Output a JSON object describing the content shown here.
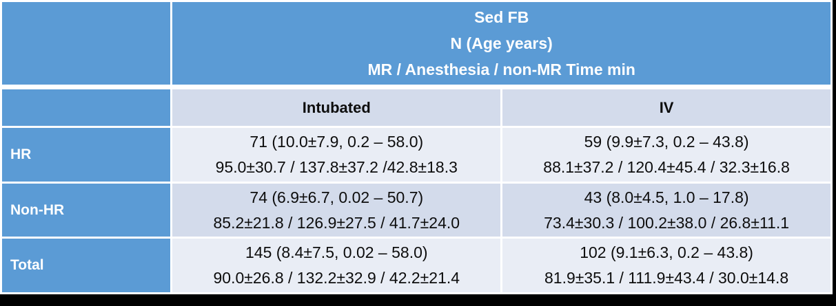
{
  "table": {
    "header": {
      "lines": [
        "Sed FB",
        "N (Age years)",
        "MR / Anesthesia / non-MR Time min"
      ]
    },
    "column_headers": [
      "Intubated",
      "IV"
    ],
    "rows": [
      {
        "label": "HR",
        "intubated": [
          "71 (10.0±7.9, 0.2 – 58.0)",
          "95.0±30.7 / 137.8±37.2 /42.8±18.3"
        ],
        "iv": [
          "59 (9.9±7.3, 0.2 – 43.8)",
          "88.1±37.2 / 120.4±45.4 / 32.3±16.8"
        ]
      },
      {
        "label": "Non-HR",
        "intubated": [
          "74 (6.9±6.7, 0.02 – 50.7)",
          "85.2±21.8 / 126.9±27.5 / 41.7±24.0"
        ],
        "iv": [
          "43 (8.0±4.5, 1.0 – 17.8)",
          "73.4±30.3 / 100.2±38.0 / 26.8±11.1"
        ]
      },
      {
        "label": "Total",
        "intubated": [
          "145 (8.4±7.5, 0.02 – 58.0)",
          "90.0±26.8 / 132.2±32.9 / 42.2±21.4"
        ],
        "iv": [
          "102 (9.1±6.3, 0.2 – 43.8)",
          "81.9±35.1 / 111.9±43.4 / 30.0±14.8"
        ]
      }
    ],
    "colors": {
      "accent_blue": "#5B9BD5",
      "band_light": "#E9EDF5",
      "band_dark": "#D3DBEB",
      "cell_border": "#FFFFFF",
      "frame_background": "#000000",
      "header_text": "#FFFFFF",
      "body_text": "#0D0D0D"
    }
  }
}
